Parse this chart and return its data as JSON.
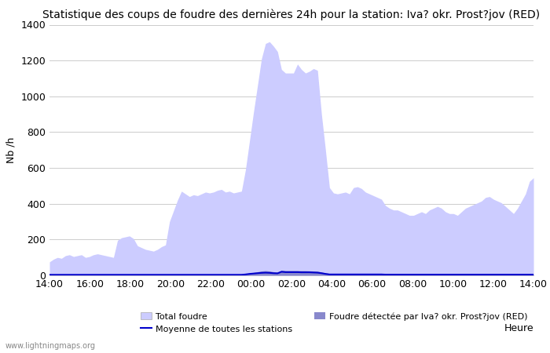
{
  "title": "Statistique des coups de foudre des dernières 24h pour la station: Iva? okr. Prost?jov (RED)",
  "ylabel": "Nb /h",
  "xlabel": "Heure",
  "watermark": "www.lightningmaps.org",
  "x_ticks": [
    "14:00",
    "16:00",
    "18:00",
    "20:00",
    "22:00",
    "00:00",
    "02:00",
    "04:00",
    "06:00",
    "08:00",
    "10:00",
    "12:00",
    "14:00"
  ],
  "ylim": [
    0,
    1400
  ],
  "yticks": [
    0,
    200,
    400,
    600,
    800,
    1000,
    1200,
    1400
  ],
  "total_foudre": [
    75,
    90,
    100,
    95,
    110,
    115,
    105,
    110,
    115,
    100,
    105,
    115,
    120,
    115,
    110,
    105,
    100,
    195,
    210,
    215,
    220,
    205,
    165,
    155,
    145,
    140,
    135,
    145,
    160,
    170,
    300,
    360,
    420,
    470,
    455,
    440,
    450,
    445,
    455,
    465,
    460,
    465,
    475,
    480,
    465,
    470,
    460,
    465,
    470,
    590,
    750,
    910,
    1060,
    1210,
    1295,
    1305,
    1280,
    1250,
    1150,
    1130,
    1130,
    1130,
    1180,
    1150,
    1130,
    1140,
    1155,
    1145,
    900,
    700,
    490,
    460,
    455,
    460,
    465,
    455,
    490,
    495,
    485,
    465,
    455,
    445,
    435,
    425,
    390,
    375,
    365,
    365,
    355,
    345,
    335,
    335,
    345,
    355,
    345,
    365,
    375,
    385,
    375,
    355,
    345,
    345,
    335,
    355,
    375,
    385,
    395,
    405,
    415,
    435,
    440,
    425,
    415,
    405,
    385,
    365,
    345,
    375,
    415,
    455,
    525,
    545
  ],
  "local_foudre": [
    4,
    5,
    6,
    5,
    6,
    6,
    5,
    5,
    6,
    5,
    5,
    5,
    6,
    5,
    5,
    5,
    5,
    5,
    5,
    5,
    5,
    5,
    5,
    5,
    4,
    4,
    4,
    4,
    4,
    4,
    4,
    4,
    4,
    5,
    5,
    5,
    5,
    5,
    4,
    4,
    4,
    5,
    5,
    5,
    4,
    4,
    4,
    4,
    4,
    8,
    12,
    16,
    20,
    24,
    26,
    24,
    20,
    18,
    28,
    26,
    26,
    26,
    26,
    26,
    26,
    25,
    24,
    23,
    18,
    14,
    10,
    10,
    10,
    10,
    10,
    10,
    10,
    10,
    10,
    10,
    10,
    10,
    10,
    10,
    8,
    8,
    8,
    8,
    8,
    8,
    8,
    8,
    8,
    8,
    8,
    8,
    8,
    8,
    8,
    8,
    8,
    8,
    8,
    8,
    8,
    8,
    8,
    8,
    8,
    8,
    8,
    8,
    8,
    8,
    8,
    8,
    8,
    8,
    8,
    8,
    8,
    8
  ],
  "moyenne": [
    3,
    3,
    3,
    3,
    3,
    3,
    3,
    3,
    3,
    3,
    3,
    3,
    3,
    3,
    3,
    3,
    3,
    3,
    3,
    3,
    3,
    3,
    3,
    3,
    3,
    3,
    3,
    3,
    3,
    3,
    3,
    3,
    3,
    3,
    3,
    3,
    3,
    3,
    3,
    3,
    3,
    3,
    3,
    3,
    3,
    3,
    3,
    3,
    3,
    5,
    8,
    10,
    12,
    14,
    15,
    14,
    12,
    11,
    20,
    18,
    18,
    18,
    18,
    17,
    17,
    17,
    16,
    15,
    12,
    8,
    5,
    5,
    5,
    5,
    5,
    5,
    5,
    5,
    5,
    5,
    5,
    5,
    5,
    5,
    4,
    4,
    4,
    4,
    4,
    4,
    4,
    4,
    4,
    4,
    4,
    4,
    4,
    4,
    4,
    4,
    4,
    4,
    4,
    4,
    4,
    4,
    4,
    4,
    4,
    4,
    4,
    4,
    4,
    4,
    4,
    4,
    4,
    4,
    4,
    4,
    4,
    4
  ],
  "fill_total_color": "#ccccff",
  "fill_local_color": "#8888cc",
  "line_color": "#0000cc",
  "bg_color": "#ffffff",
  "grid_color": "#cccccc",
  "title_fontsize": 10,
  "tick_fontsize": 9,
  "legend_total_label": "Total foudre",
  "legend_local_label": "Foudre détectée par Iva? okr. Prost?jov (RED)",
  "legend_moyenne_label": "Moyenne de toutes les stations"
}
